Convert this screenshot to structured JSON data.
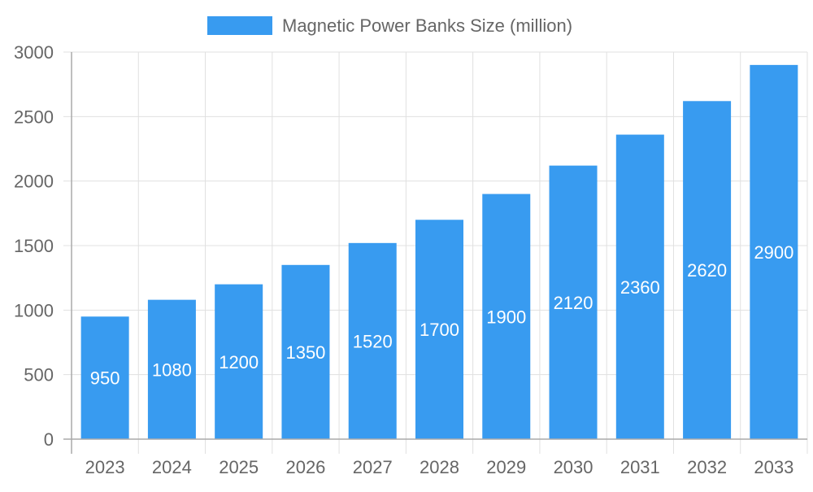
{
  "chart_data": {
    "type": "bar",
    "categories": [
      "2023",
      "2024",
      "2025",
      "2026",
      "2027",
      "2028",
      "2029",
      "2030",
      "2031",
      "2032",
      "2033"
    ],
    "series": [
      {
        "name": "Magnetic Power Banks Size (million)",
        "values": [
          950,
          1080,
          1200,
          1350,
          1520,
          1700,
          1900,
          2120,
          2360,
          2620,
          2900
        ],
        "color": "#389bf0"
      }
    ],
    "title": "",
    "xlabel": "",
    "ylabel": "",
    "ylim": [
      0,
      3000
    ],
    "yticks": [
      0,
      500,
      1000,
      1500,
      2000,
      2500,
      3000
    ],
    "grid": true,
    "legend": "top-center",
    "data_labels": true
  }
}
